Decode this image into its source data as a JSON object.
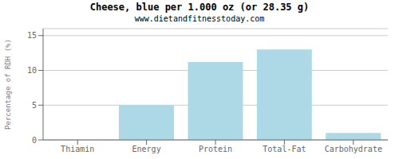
{
  "chart_data": {
    "type": "bar",
    "title": "Cheese, blue per 1.000 oz (or 28.35 g)",
    "subtitle": "www.dietandfitnesstoday.com",
    "categories": [
      "Thiamin",
      "Energy",
      "Protein",
      "Total-Fat",
      "Carbohydrate"
    ],
    "values": [
      0,
      5.0,
      11.2,
      13.0,
      1.0
    ],
    "color": "#add8e6",
    "ylabel": "Percentage of RDH (%)",
    "ylim": [
      0,
      16
    ],
    "yticks": [
      0,
      5,
      10,
      15
    ],
    "grid": true
  }
}
